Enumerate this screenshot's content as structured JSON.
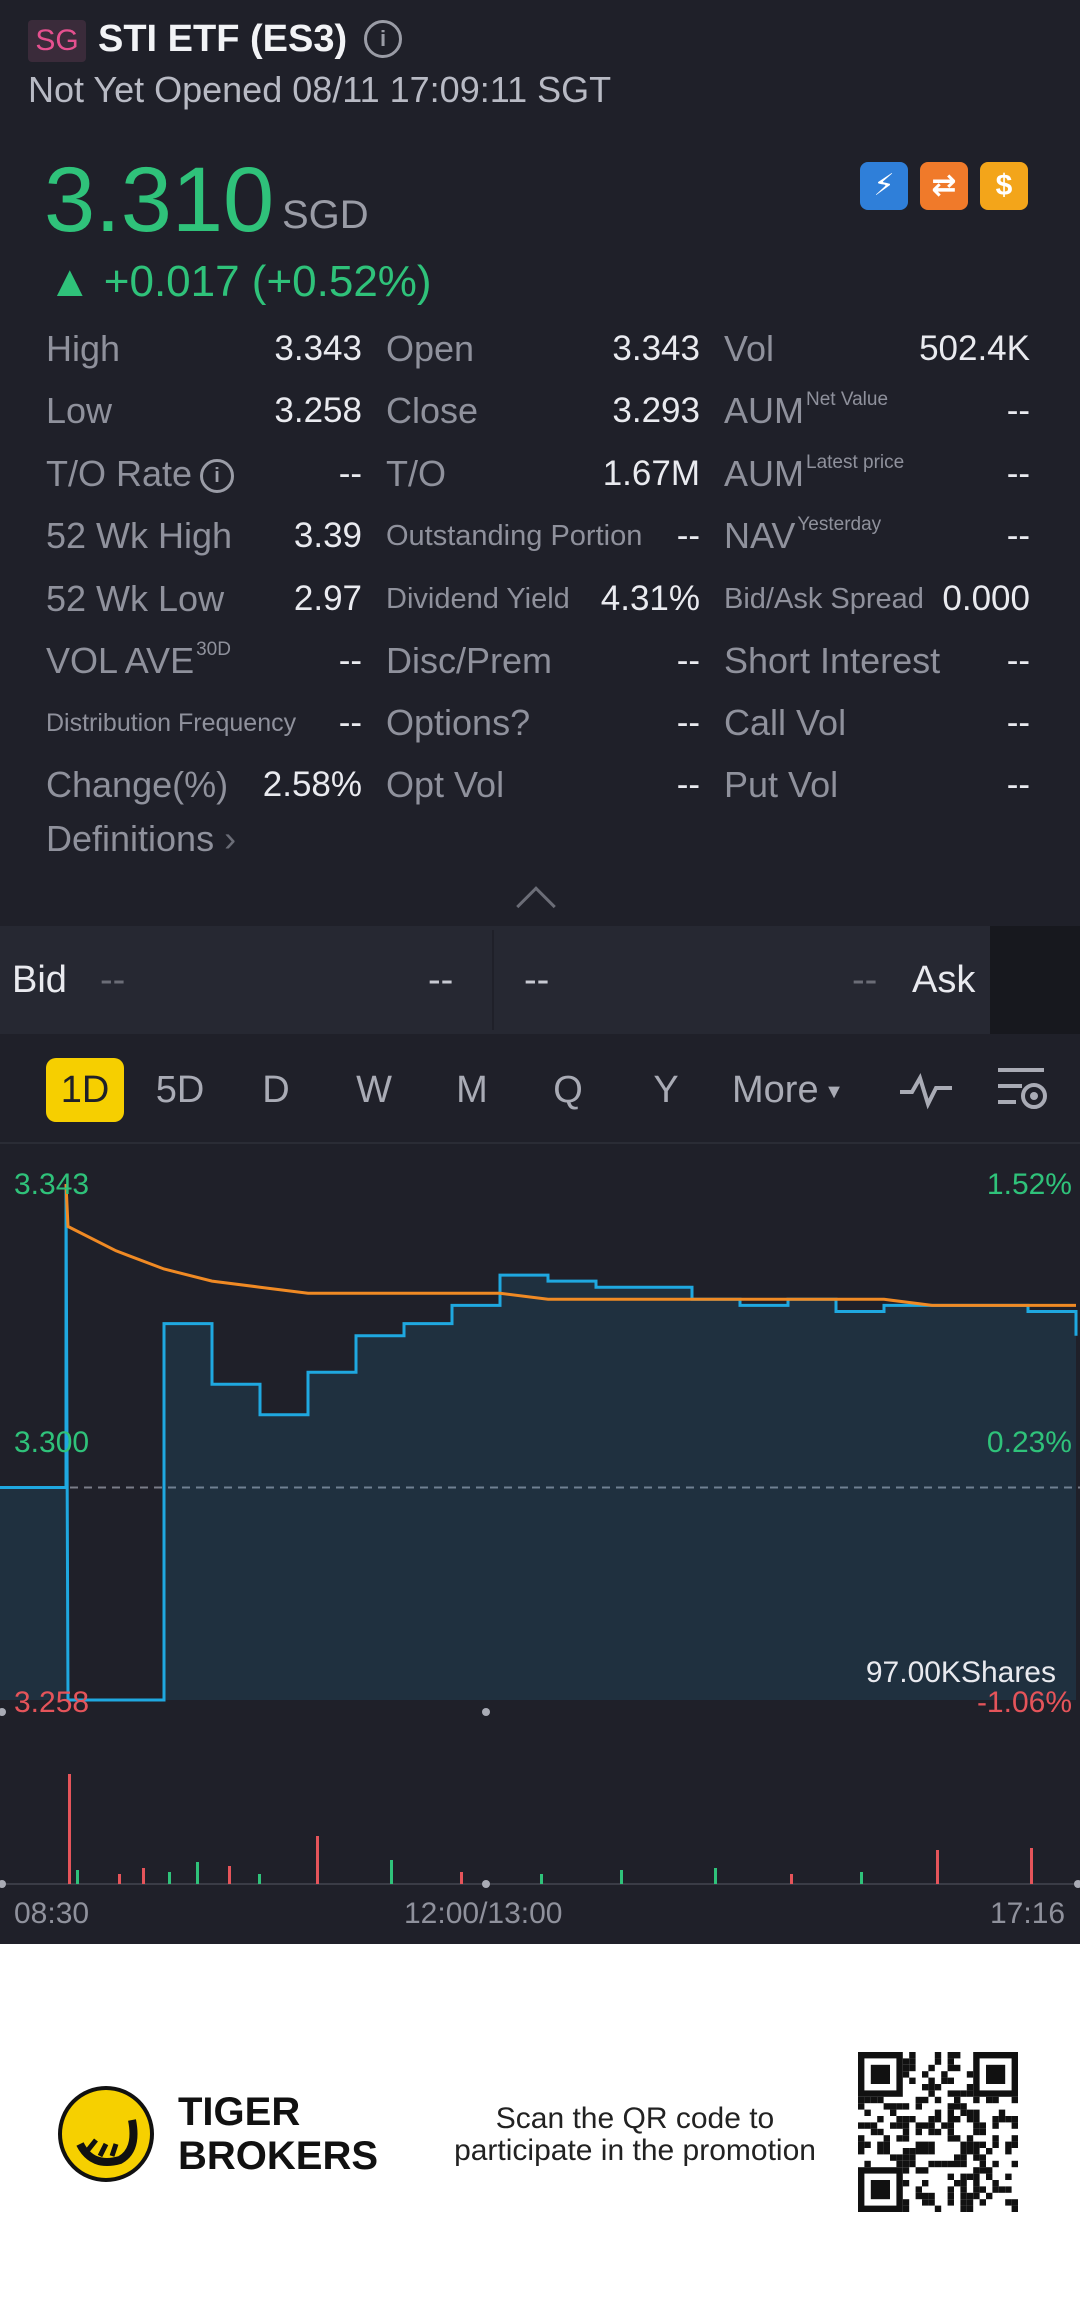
{
  "header": {
    "market_badge": "SG",
    "title": "STI ETF (ES3)",
    "status": "Not Yet Opened 08/11 17:09:11 SGT",
    "price": "3.310",
    "currency": "SGD",
    "change": "▲ +0.017 (+0.52%)"
  },
  "stats": {
    "col1": [
      {
        "label": "High",
        "value": "3.343"
      },
      {
        "label": "Low",
        "value": "3.258"
      },
      {
        "label": "T/O Rate",
        "value": "--"
      },
      {
        "label": "52 Wk High",
        "value": "3.39"
      },
      {
        "label": "52 Wk Low",
        "value": "2.97"
      },
      {
        "label": "VOL AVE",
        "sup": "30D",
        "value": "--"
      },
      {
        "label": "Distribution Frequency",
        "value": "--"
      },
      {
        "label": "Change(%)",
        "value": "2.58%"
      }
    ],
    "col2": [
      {
        "label": "Open",
        "value": "3.343"
      },
      {
        "label": "Close",
        "value": "3.293"
      },
      {
        "label": "T/O",
        "value": "1.67M"
      },
      {
        "label": "Outstanding Portion",
        "value": "--"
      },
      {
        "label": "Dividend Yield",
        "value": "4.31%"
      },
      {
        "label": "Disc/Prem",
        "value": "--"
      },
      {
        "label": "Options?",
        "value": "--"
      },
      {
        "label": "Opt Vol",
        "value": "--"
      }
    ],
    "col3": [
      {
        "label": "Vol",
        "value": "502.4K"
      },
      {
        "label": "AUM",
        "sup": "Net Value",
        "value": "--"
      },
      {
        "label": "AUM",
        "sup": "Latest price",
        "value": "--"
      },
      {
        "label": "NAV",
        "sup": "Yesterday",
        "value": "--"
      },
      {
        "label": "Bid/Ask Spread",
        "value": "0.000"
      },
      {
        "label": "Short Interest",
        "value": "--"
      },
      {
        "label": "Call Vol",
        "value": "--"
      },
      {
        "label": "Put Vol",
        "value": "--"
      }
    ],
    "definitions": "Definitions"
  },
  "bidask": {
    "bid_label": "Bid",
    "bid_price": "--",
    "bid_size": "--",
    "ask_size": "--",
    "ask_price": "--",
    "ask_label": "Ask"
  },
  "tabs": [
    "1D",
    "5D",
    "D",
    "W",
    "M",
    "Q",
    "Y",
    "More"
  ],
  "chart_data": {
    "type": "line",
    "y_left_labels": [
      "3.343",
      "3.300",
      "3.258"
    ],
    "y_right_labels": [
      "1.52%",
      "0.23%",
      "-1.06%"
    ],
    "volume_label": "97.00KShares",
    "x_labels": [
      "08:30",
      "12:00/13:00",
      "17:16"
    ],
    "prev_close": 3.293,
    "ylim": [
      3.258,
      3.343
    ],
    "price_series": [
      3.293,
      3.343,
      3.258,
      3.32,
      3.31,
      3.305,
      3.312,
      3.318,
      3.32,
      3.323,
      3.328,
      3.327,
      3.326,
      3.326,
      3.324,
      3.323,
      3.324,
      3.322,
      3.323,
      3.323,
      3.323,
      3.322,
      3.318
    ],
    "avg_series": [
      3.343,
      3.336,
      3.332,
      3.329,
      3.327,
      3.326,
      3.325,
      3.325,
      3.325,
      3.325,
      3.325,
      3.324,
      3.324,
      3.324,
      3.324,
      3.324,
      3.324,
      3.324,
      3.324,
      3.323,
      3.323,
      3.323,
      3.323
    ],
    "colors": {
      "price": "#1fa8e0",
      "avg": "#f08a24",
      "up": "#2fc27a",
      "down": "#e5545a"
    }
  },
  "footer": {
    "brand_line1": "TIGER",
    "brand_line2": "BROKERS",
    "promo_line1": "Scan the QR code to",
    "promo_line2": "participate in the promotion"
  }
}
